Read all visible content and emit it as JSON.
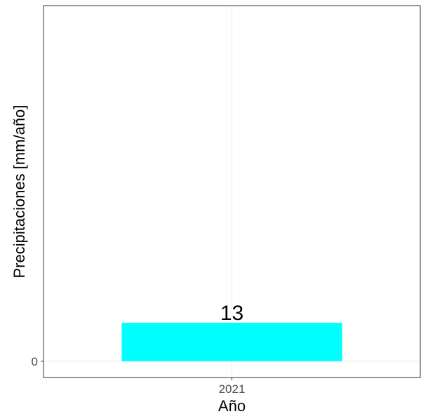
{
  "chart_data": {
    "type": "bar",
    "categories": [
      "2021"
    ],
    "values": [
      13
    ],
    "data_labels": [
      "13"
    ],
    "title": "",
    "xlabel": "Año",
    "ylabel": "Precipitaciones [mm/año]",
    "y_ticks": [
      0
    ],
    "y_tick_labels": [
      "0"
    ],
    "ylim": [
      -5.5,
      120
    ],
    "grid": true,
    "legend": "none",
    "colors": {
      "bar": "#00FFFF",
      "grid": "#EBEBEB",
      "panel_border": "#333333"
    }
  }
}
